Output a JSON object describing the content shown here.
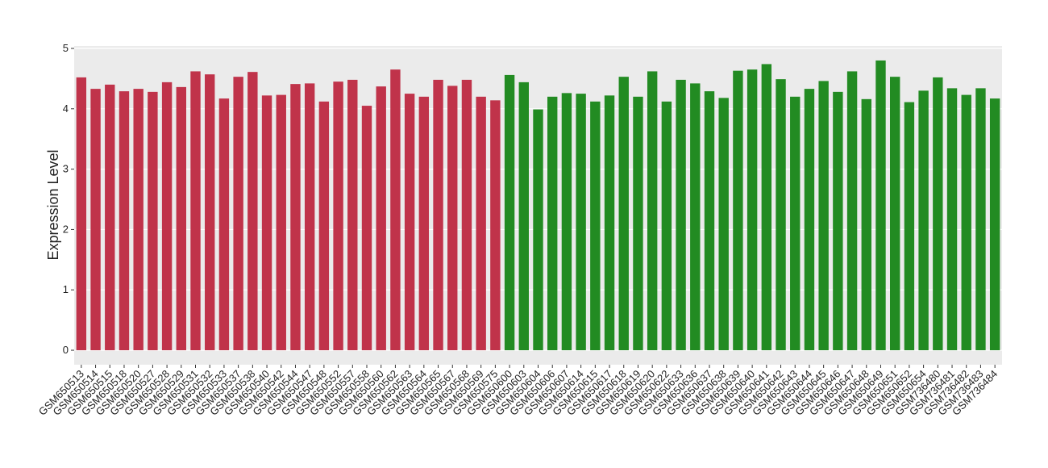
{
  "chart_data": {
    "type": "bar",
    "y_label": "Expression Level",
    "categories": [
      "GSM650513",
      "GSM650514",
      "GSM650515",
      "GSM650518",
      "GSM650520",
      "GSM650527",
      "GSM650528",
      "GSM650529",
      "GSM650531",
      "GSM650532",
      "GSM650533",
      "GSM650537",
      "GSM650538",
      "GSM650540",
      "GSM650542",
      "GSM650544",
      "GSM650547",
      "GSM650548",
      "GSM650552",
      "GSM650557",
      "GSM650558",
      "GSM650560",
      "GSM650562",
      "GSM650563",
      "GSM650564",
      "GSM650565",
      "GSM650567",
      "GSM650568",
      "GSM650569",
      "GSM650575",
      "GSM650600",
      "GSM650603",
      "GSM650604",
      "GSM650606",
      "GSM650607",
      "GSM650614",
      "GSM650615",
      "GSM650617",
      "GSM650618",
      "GSM650619",
      "GSM650620",
      "GSM650622",
      "GSM650633",
      "GSM650636",
      "GSM650637",
      "GSM650638",
      "GSM650639",
      "GSM650640",
      "GSM650641",
      "GSM650642",
      "GSM650643",
      "GSM650644",
      "GSM650645",
      "GSM650646",
      "GSM650647",
      "GSM650648",
      "GSM650649",
      "GSM650651",
      "GSM650652",
      "GSM650654",
      "GSM736480",
      "GSM736481",
      "GSM736482",
      "GSM736483",
      "GSM736484"
    ],
    "values": [
      4.52,
      4.33,
      4.4,
      4.29,
      4.33,
      4.28,
      4.44,
      4.36,
      4.62,
      4.57,
      4.17,
      4.53,
      4.61,
      4.22,
      4.23,
      4.41,
      4.42,
      4.12,
      4.45,
      4.48,
      4.05,
      4.37,
      4.65,
      4.25,
      4.2,
      4.48,
      4.38,
      4.48,
      4.2,
      4.14,
      4.56,
      4.44,
      3.99,
      4.2,
      4.26,
      4.25,
      4.12,
      4.22,
      4.53,
      4.2,
      4.62,
      4.12,
      4.48,
      4.42,
      4.29,
      4.18,
      4.63,
      4.65,
      4.74,
      4.49,
      4.2,
      4.33,
      4.46,
      4.28,
      4.62,
      4.16,
      4.8,
      4.53,
      4.11,
      4.3,
      4.52,
      4.34,
      4.23,
      4.34,
      4.17
    ],
    "bar_colors": [
      "#c0334a",
      "#c0334a",
      "#c0334a",
      "#c0334a",
      "#c0334a",
      "#c0334a",
      "#c0334a",
      "#c0334a",
      "#c0334a",
      "#c0334a",
      "#c0334a",
      "#c0334a",
      "#c0334a",
      "#c0334a",
      "#c0334a",
      "#c0334a",
      "#c0334a",
      "#c0334a",
      "#c0334a",
      "#c0334a",
      "#c0334a",
      "#c0334a",
      "#c0334a",
      "#c0334a",
      "#c0334a",
      "#c0334a",
      "#c0334a",
      "#c0334a",
      "#c0334a",
      "#c0334a",
      "#228b22",
      "#228b22",
      "#228b22",
      "#228b22",
      "#228b22",
      "#228b22",
      "#228b22",
      "#228b22",
      "#228b22",
      "#228b22",
      "#228b22",
      "#228b22",
      "#228b22",
      "#228b22",
      "#228b22",
      "#228b22",
      "#228b22",
      "#228b22",
      "#228b22",
      "#228b22",
      "#228b22",
      "#228b22",
      "#228b22",
      "#228b22",
      "#228b22",
      "#228b22",
      "#228b22",
      "#228b22",
      "#228b22",
      "#228b22",
      "#228b22",
      "#228b22",
      "#228b22",
      "#228b22",
      "#228b22"
    ],
    "ylim": [
      -0.24,
      5.04
    ],
    "yticks": [
      0,
      1,
      2,
      3,
      4,
      5
    ],
    "grid": true
  }
}
